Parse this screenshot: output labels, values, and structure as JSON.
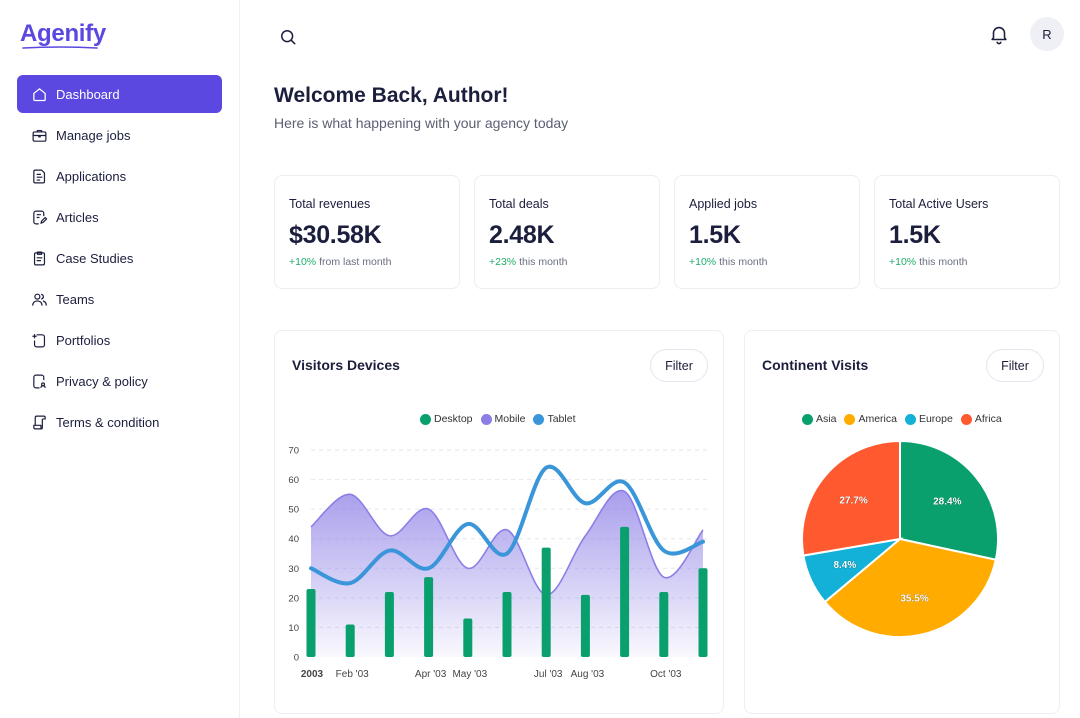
{
  "brand": {
    "name": "Agenify",
    "accent": "#5a48e0"
  },
  "sidebar": {
    "items": [
      {
        "label": "Dashboard",
        "icon": "home-icon",
        "active": true
      },
      {
        "label": "Manage jobs",
        "icon": "briefcase-icon"
      },
      {
        "label": "Applications",
        "icon": "document-icon"
      },
      {
        "label": "Articles",
        "icon": "article-edit-icon"
      },
      {
        "label": "Case Studies",
        "icon": "clipboard-icon"
      },
      {
        "label": "Teams",
        "icon": "users-icon"
      },
      {
        "label": "Portfolios",
        "icon": "portfolio-icon"
      },
      {
        "label": "Privacy & policy",
        "icon": "privacy-doc-icon"
      },
      {
        "label": "Terms & condition",
        "icon": "terms-scroll-icon"
      }
    ]
  },
  "topbar": {
    "search_icon": "search-icon",
    "bell_icon": "bell-icon",
    "avatar_initial": "R"
  },
  "header": {
    "title": "Welcome Back, Author!",
    "subtitle": "Here is what happening with your agency today"
  },
  "stats": [
    {
      "title": "Total revenues",
      "value": "$30.58K",
      "delta": "+10%",
      "delta_text": "from last month"
    },
    {
      "title": "Total deals",
      "value": "2.48K",
      "delta": "+23%",
      "delta_text": "this month"
    },
    {
      "title": "Applied jobs",
      "value": "1.5K",
      "delta": "+10%",
      "delta_text": "this month"
    },
    {
      "title": "Total Active Users",
      "value": "1.5K",
      "delta": "+10%",
      "delta_text": "this month"
    }
  ],
  "visitors_panel": {
    "title": "Visitors Devices",
    "filter_label": "Filter"
  },
  "continent_panel": {
    "title": "Continent Visits",
    "filter_label": "Filter"
  },
  "chart_data": [
    {
      "type": "bar",
      "composite": "bar + line + area",
      "x_tick_labels": [
        "2003",
        "Feb '03",
        "Apr '03",
        "May '03",
        "Jul '03",
        "Aug '03",
        "Oct '03"
      ],
      "ylim": [
        0,
        70
      ],
      "y_ticks": [
        0,
        10,
        20,
        30,
        40,
        50,
        60,
        70
      ],
      "grid": true,
      "legend_position": "top",
      "series": [
        {
          "name": "Desktop",
          "type": "bar",
          "color": "#0aa06e",
          "values": [
            23,
            11,
            22,
            27,
            13,
            22,
            37,
            21,
            44,
            22,
            30
          ]
        },
        {
          "name": "Mobile",
          "type": "area",
          "color": "#8b7ee6",
          "values": [
            44,
            55,
            41,
            50,
            30,
            43,
            21,
            41,
            56,
            27,
            43
          ]
        },
        {
          "name": "Tablet",
          "type": "line",
          "color": "#3a96d9",
          "values": [
            30,
            25,
            36,
            30,
            45,
            35,
            64,
            52,
            59,
            36,
            39
          ]
        }
      ]
    },
    {
      "type": "pie",
      "legend_position": "top",
      "slices": [
        {
          "label": "Asia",
          "value": 28.4,
          "color": "#0aa06e"
        },
        {
          "label": "America",
          "value": 35.5,
          "color": "#ffab00"
        },
        {
          "label": "Europe",
          "value": 8.4,
          "color": "#13b0d8"
        },
        {
          "label": "Africa",
          "value": 27.7,
          "color": "#ff5a2f"
        }
      ]
    }
  ]
}
